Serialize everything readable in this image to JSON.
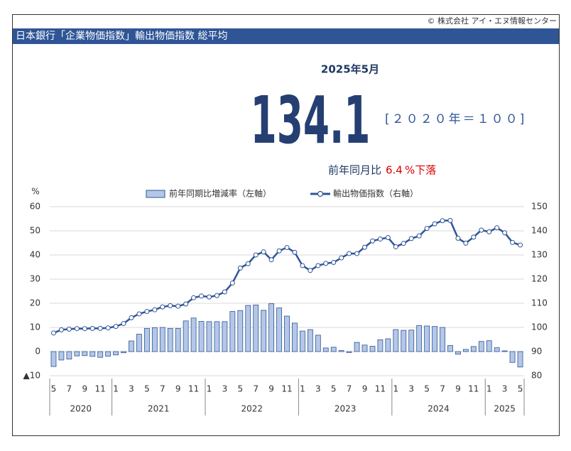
{
  "copyright": "© 株式会社 アイ・エヌ情報センター",
  "header": {
    "title": "日本銀行「企業物価指数」輸出物価指数 総平均"
  },
  "headline": {
    "date": "2025年5月",
    "value": 134.1,
    "base": "[２０２０年＝１００]",
    "yoy_label": "前年同月比",
    "yoy_value": 6.4,
    "yoy_suffix": "%下落"
  },
  "chart_data": {
    "type": "bar-line",
    "y_unit_label": "%",
    "categories": [
      "5",
      null,
      "7",
      null,
      "9",
      null,
      "11",
      null,
      "1",
      null,
      "3",
      null,
      "5",
      null,
      "7",
      null,
      "9",
      null,
      "11",
      null,
      "1",
      null,
      "3",
      null,
      "5",
      null,
      "7",
      null,
      "9",
      null,
      "11",
      null,
      "1",
      null,
      "3",
      null,
      "5",
      null,
      "7",
      null,
      "9",
      null,
      "11",
      null,
      "1",
      null,
      "3",
      null,
      "5",
      null,
      "7",
      null,
      "9",
      null,
      "11",
      null,
      "1",
      null,
      "3",
      null,
      "5"
    ],
    "years": [
      "2020",
      "2021",
      "2022",
      "2023",
      "2024",
      "2025"
    ],
    "series": [
      {
        "name": "前年同期比増減率（左軸）",
        "type": "bar",
        "color": "#b4c7e7",
        "edge_color": "#2f5597",
        "values": [
          -6.2,
          -3.5,
          -3.1,
          -1.8,
          -1.7,
          -2.0,
          -2.4,
          -1.9,
          -1.4,
          -0.5,
          4.4,
          7.2,
          9.6,
          9.9,
          10.0,
          9.6,
          9.6,
          12.7,
          13.9,
          12.5,
          12.4,
          12.4,
          12.4,
          16.6,
          17.0,
          19.1,
          19.3,
          17.1,
          19.9,
          18.1,
          14.7,
          11.8,
          8.5,
          9.1,
          6.8,
          1.5,
          1.8,
          0.4,
          -0.4,
          3.8,
          2.7,
          2.2,
          4.9,
          5.3,
          9.1,
          8.8,
          8.9,
          10.8,
          10.6,
          10.4,
          10.0,
          2.5,
          -1.1,
          0.9,
          2.1,
          4.2,
          4.5,
          1.6,
          0.3,
          -4.5,
          -6.4
        ]
      },
      {
        "name": "輸出物価指数（右軸）",
        "type": "line",
        "axis": "y2",
        "color": "#2f5597",
        "values": [
          97.7,
          99.0,
          99.3,
          99.5,
          99.5,
          99.6,
          99.6,
          99.8,
          100.4,
          101.6,
          104.0,
          105.6,
          106.6,
          107.3,
          108.5,
          109.0,
          108.8,
          109.7,
          112.3,
          113.0,
          112.6,
          113.2,
          114.7,
          118.4,
          124.6,
          126.4,
          130.0,
          131.3,
          128.0,
          131.7,
          133.1,
          131.1,
          125.6,
          123.6,
          125.6,
          126.5,
          126.9,
          128.8,
          130.6,
          130.6,
          133.2,
          135.8,
          136.6,
          137.2,
          133.4,
          134.8,
          136.8,
          137.9,
          141.0,
          142.9,
          144.2,
          144.3,
          136.9,
          134.9,
          137.4,
          140.3,
          139.6,
          141.3,
          139.2,
          135.2,
          134.1
        ]
      }
    ],
    "ylim": [
      -10,
      60
    ],
    "yticks": [
      {
        "value": -10,
        "label": "▲10"
      },
      0,
      10,
      20,
      30,
      40,
      50,
      60
    ],
    "y2lim": [
      80,
      150
    ],
    "y2ticks": [
      80,
      90,
      100,
      110,
      120,
      130,
      140,
      150
    ],
    "grid": true
  }
}
